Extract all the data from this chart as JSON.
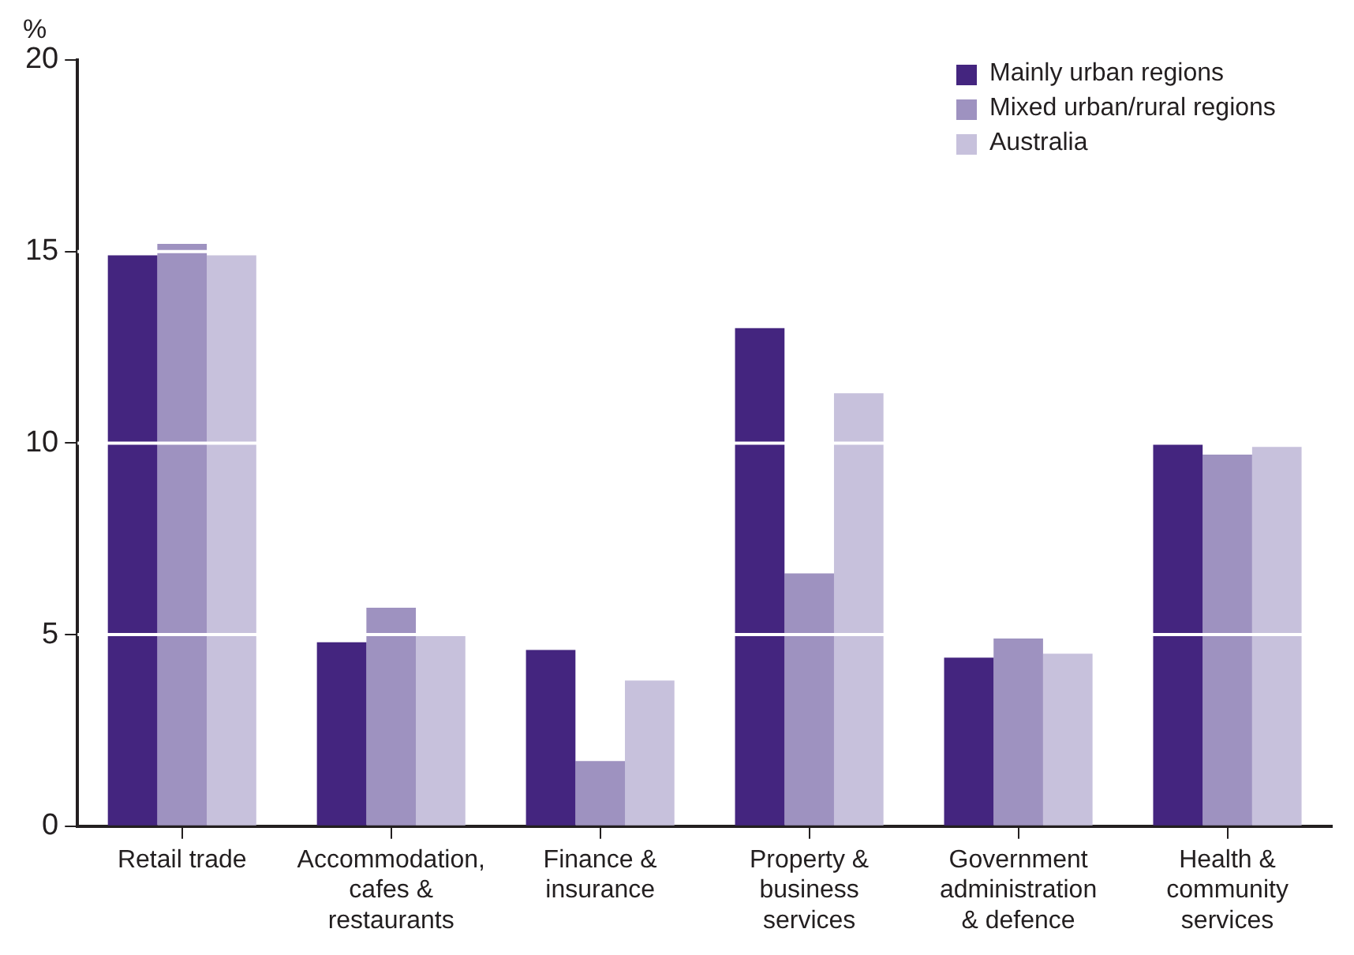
{
  "chart_data": {
    "type": "bar",
    "ylabel": "%",
    "categories": [
      "Retail trade",
      "Accommodation, cafes & restaurants",
      "Finance & insurance",
      "Property & business services",
      "Government administration & defence",
      "Health & community services"
    ],
    "series": [
      {
        "name": "Mainly urban regions",
        "color": "#44257f",
        "values": [
          14.9,
          4.8,
          4.6,
          13.0,
          4.4,
          10.0
        ]
      },
      {
        "name": "Mixed urban/rural regions",
        "color": "#9e92c0",
        "values": [
          15.2,
          5.7,
          1.7,
          6.6,
          4.9,
          9.7
        ]
      },
      {
        "name": "Australia",
        "color": "#c7c1dc",
        "values": [
          14.9,
          5.0,
          3.8,
          11.3,
          4.5,
          9.9
        ]
      }
    ],
    "ylim": [
      0,
      20
    ],
    "yticks": [
      0,
      5,
      10,
      15,
      20
    ],
    "grid": "y",
    "legend": "top right"
  }
}
